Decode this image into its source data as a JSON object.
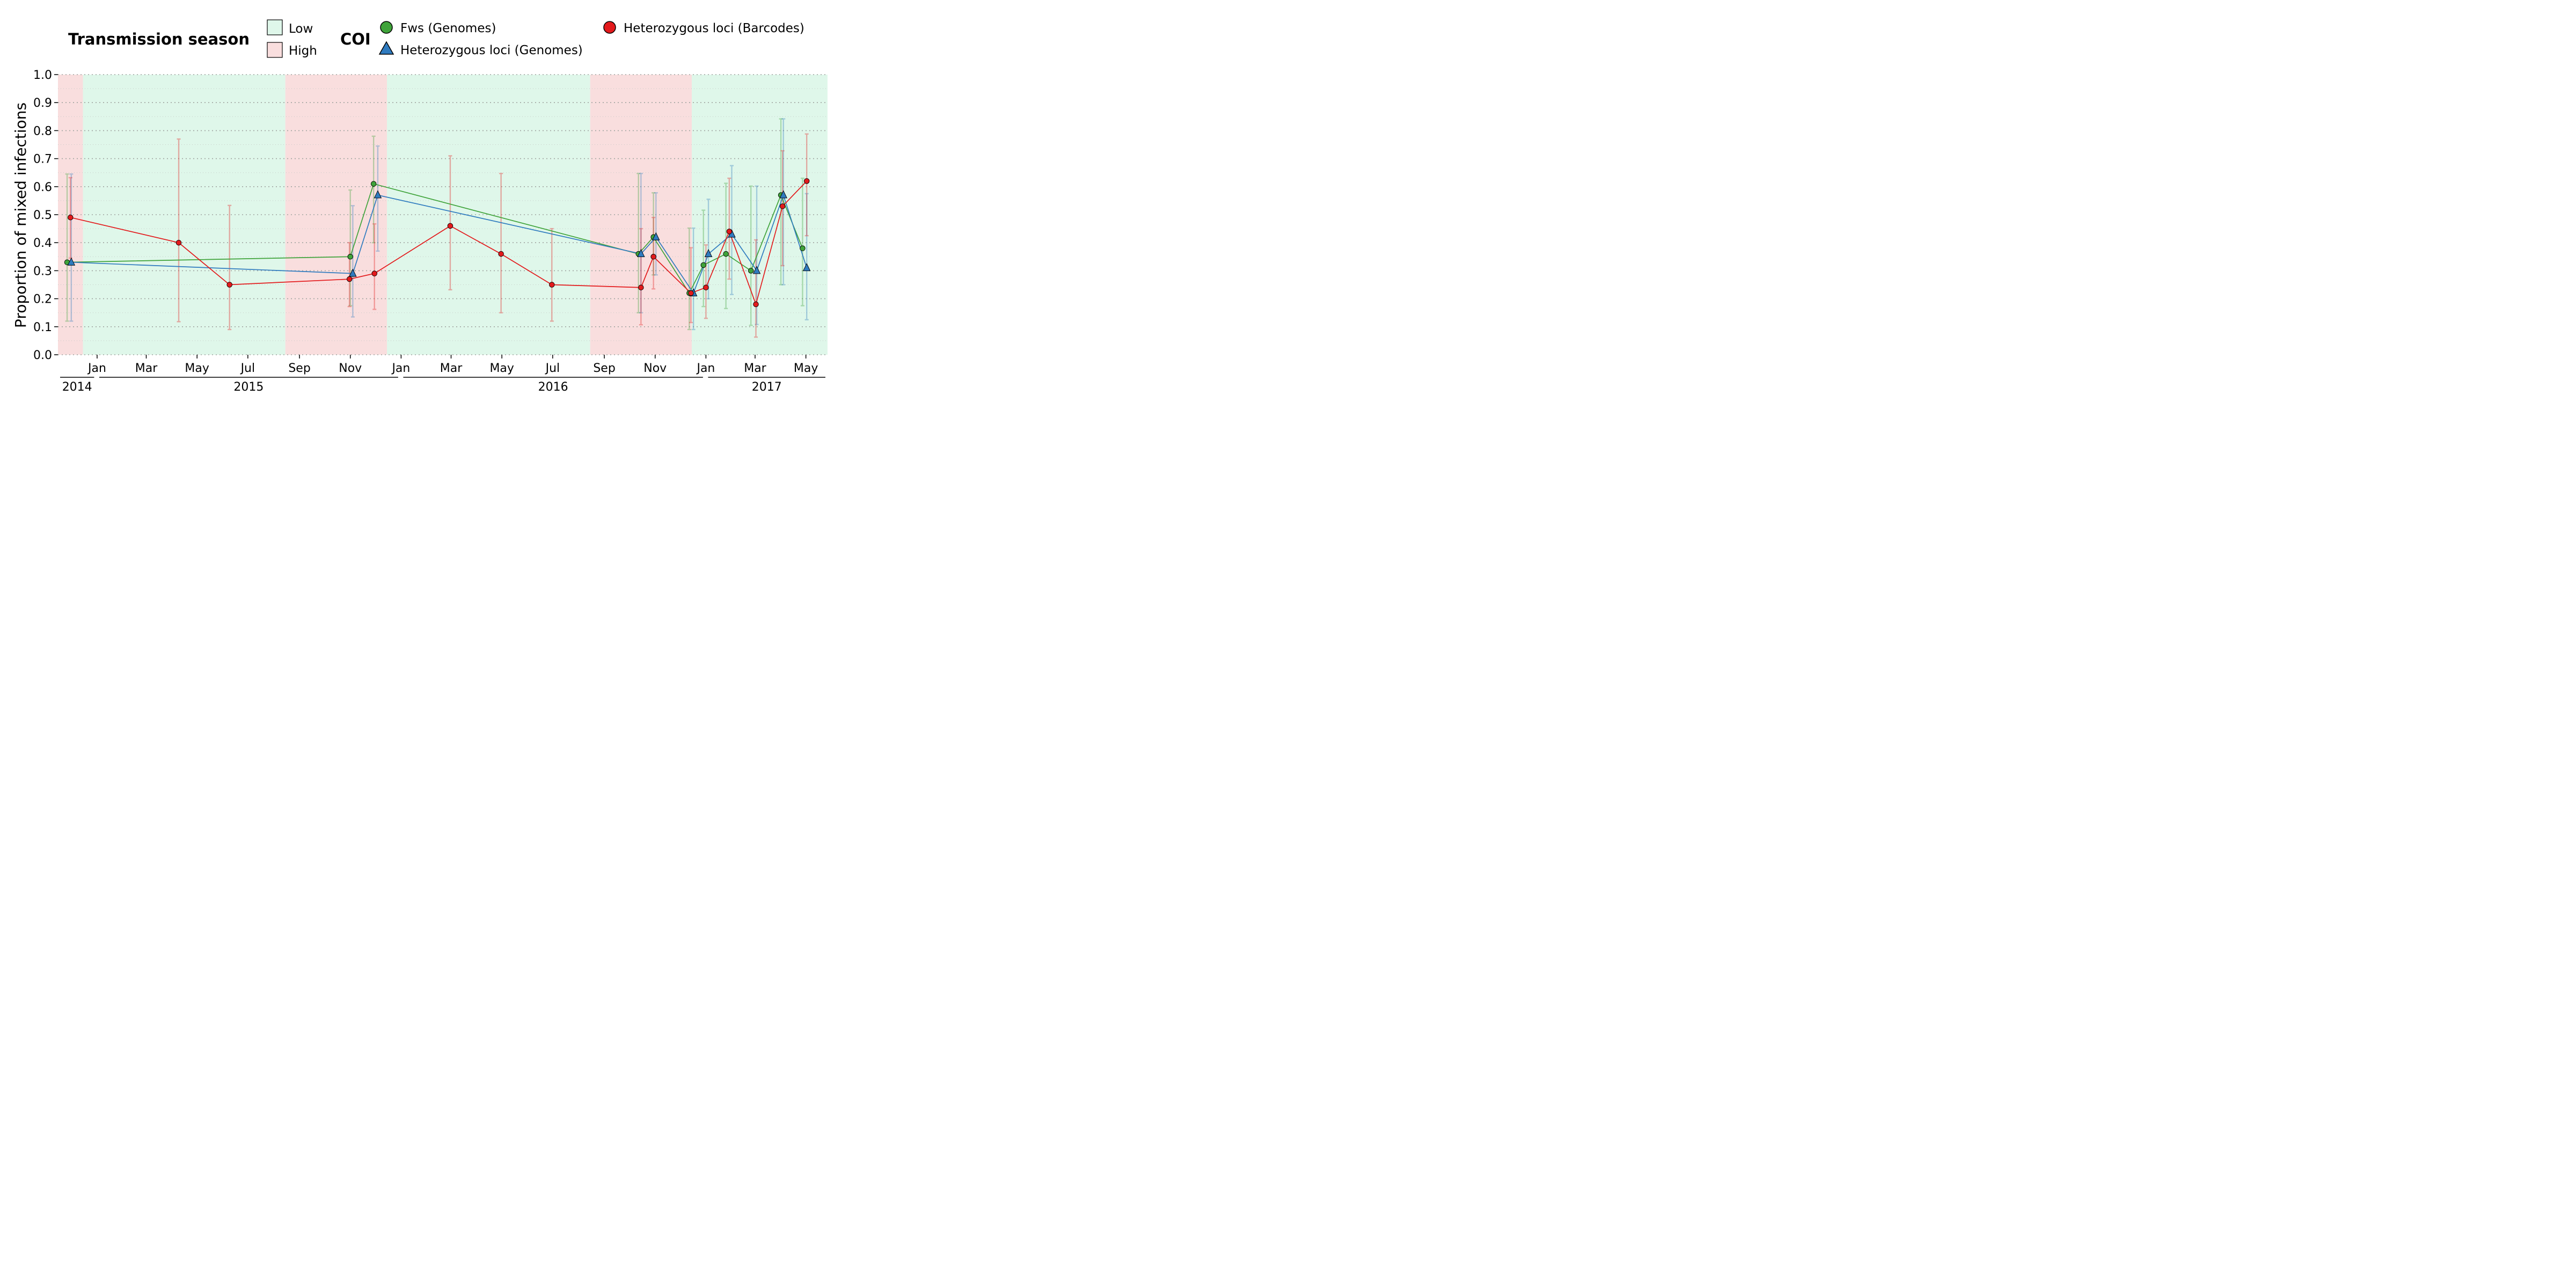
{
  "chart_data": {
    "type": "line",
    "title": "",
    "xlabel": "",
    "ylabel": "Proportion of mixed infections",
    "ylim": [
      0,
      1
    ],
    "xlim": [
      "2014-11-15",
      "2017-05-27"
    ],
    "yticks": [
      "0.0",
      "0.1",
      "0.2",
      "0.3",
      "0.4",
      "0.5",
      "0.6",
      "0.7",
      "0.8",
      "0.9",
      "1.0"
    ],
    "month_ticks": [
      {
        "label": "Jan",
        "date": "2015-01-01"
      },
      {
        "label": "Mar",
        "date": "2015-03-01"
      },
      {
        "label": "May",
        "date": "2015-05-01"
      },
      {
        "label": "Jul",
        "date": "2015-07-01"
      },
      {
        "label": "Sep",
        "date": "2015-09-01"
      },
      {
        "label": "Nov",
        "date": "2015-11-01"
      },
      {
        "label": "Jan",
        "date": "2016-01-01"
      },
      {
        "label": "Mar",
        "date": "2016-03-01"
      },
      {
        "label": "May",
        "date": "2016-05-01"
      },
      {
        "label": "Jul",
        "date": "2016-07-01"
      },
      {
        "label": "Sep",
        "date": "2016-09-01"
      },
      {
        "label": "Nov",
        "date": "2016-11-01"
      },
      {
        "label": "Jan",
        "date": "2017-01-01"
      },
      {
        "label": "Mar",
        "date": "2017-03-01"
      },
      {
        "label": "May",
        "date": "2017-05-01"
      }
    ],
    "year_labels": [
      {
        "label": "2014",
        "start": "2014-11-15",
        "end": "2014-12-31"
      },
      {
        "label": "2015",
        "start": "2015-01-01",
        "end": "2015-12-31"
      },
      {
        "label": "2016",
        "start": "2016-01-01",
        "end": "2016-12-31"
      },
      {
        "label": "2017",
        "start": "2017-01-01",
        "end": "2017-05-27"
      }
    ],
    "seasons": [
      {
        "level": "High",
        "start": "2014-11-15",
        "end": "2014-12-15"
      },
      {
        "level": "Low",
        "start": "2014-12-15",
        "end": "2015-08-15"
      },
      {
        "level": "High",
        "start": "2015-08-15",
        "end": "2015-12-15"
      },
      {
        "level": "Low",
        "start": "2015-12-15",
        "end": "2016-08-15"
      },
      {
        "level": "High",
        "start": "2016-08-15",
        "end": "2016-12-15"
      },
      {
        "level": "Low",
        "start": "2016-12-15",
        "end": "2017-05-27"
      }
    ],
    "legend": {
      "season_title": "Transmission season",
      "season_items": [
        {
          "label": "Low",
          "color": "#dff7ea"
        },
        {
          "label": "High",
          "color": "#f9dede"
        }
      ],
      "coi_title": "COI",
      "position": "top"
    },
    "series": [
      {
        "name": "Fws (Genomes)",
        "color": "#3fa33a",
        "marker": "circle",
        "points": [
          {
            "x": "2014-11-26",
            "y": 0.33,
            "lo": 0.12,
            "hi": 0.645
          },
          {
            "x": "2015-11-01",
            "y": 0.35,
            "lo": 0.175,
            "hi": 0.588
          },
          {
            "x": "2015-11-29",
            "y": 0.61,
            "lo": 0.4,
            "hi": 0.78
          },
          {
            "x": "2016-10-12",
            "y": 0.36,
            "lo": 0.15,
            "hi": 0.647
          },
          {
            "x": "2016-10-30",
            "y": 0.42,
            "lo": 0.285,
            "hi": 0.578
          },
          {
            "x": "2016-12-12",
            "y": 0.22,
            "lo": 0.09,
            "hi": 0.452
          },
          {
            "x": "2016-12-29",
            "y": 0.32,
            "lo": 0.172,
            "hi": 0.516
          },
          {
            "x": "2017-01-25",
            "y": 0.36,
            "lo": 0.165,
            "hi": 0.612
          },
          {
            "x": "2017-02-24",
            "y": 0.3,
            "lo": 0.105,
            "hi": 0.602
          },
          {
            "x": "2017-04-01",
            "y": 0.57,
            "lo": 0.25,
            "hi": 0.842
          },
          {
            "x": "2017-04-27",
            "y": 0.38,
            "lo": 0.175,
            "hi": 0.63
          }
        ]
      },
      {
        "name": "Heterozygous loci (Genomes)",
        "color": "#2f7bbf",
        "marker": "triangle",
        "points": [
          {
            "x": "2014-12-01",
            "y": 0.33,
            "lo": 0.12,
            "hi": 0.645
          },
          {
            "x": "2015-11-04",
            "y": 0.29,
            "lo": 0.135,
            "hi": 0.532
          },
          {
            "x": "2015-12-04",
            "y": 0.57,
            "lo": 0.37,
            "hi": 0.745
          },
          {
            "x": "2016-10-15",
            "y": 0.36,
            "lo": 0.15,
            "hi": 0.647
          },
          {
            "x": "2016-11-02",
            "y": 0.42,
            "lo": 0.285,
            "hi": 0.578
          },
          {
            "x": "2016-12-17",
            "y": 0.22,
            "lo": 0.09,
            "hi": 0.452
          },
          {
            "x": "2017-01-04",
            "y": 0.36,
            "lo": 0.2,
            "hi": 0.555
          },
          {
            "x": "2017-02-01",
            "y": 0.43,
            "lo": 0.215,
            "hi": 0.675
          },
          {
            "x": "2017-03-03",
            "y": 0.3,
            "lo": 0.108,
            "hi": 0.602
          },
          {
            "x": "2017-04-04",
            "y": 0.57,
            "lo": 0.25,
            "hi": 0.842
          },
          {
            "x": "2017-05-02",
            "y": 0.31,
            "lo": 0.125,
            "hi": 0.575
          }
        ]
      },
      {
        "name": "Heterozygous loci (Barcodes)",
        "color": "#e31a1c",
        "marker": "circle",
        "points": [
          {
            "x": "2014-11-30",
            "y": 0.49,
            "lo": 0.345,
            "hi": 0.632
          },
          {
            "x": "2015-04-09",
            "y": 0.4,
            "lo": 0.118,
            "hi": 0.77
          },
          {
            "x": "2015-06-09",
            "y": 0.25,
            "lo": 0.09,
            "hi": 0.533
          },
          {
            "x": "2015-10-31",
            "y": 0.27,
            "lo": 0.172,
            "hi": 0.4
          },
          {
            "x": "2015-11-30",
            "y": 0.29,
            "lo": 0.162,
            "hi": 0.467
          },
          {
            "x": "2016-02-29",
            "y": 0.46,
            "lo": 0.232,
            "hi": 0.71
          },
          {
            "x": "2016-04-30",
            "y": 0.36,
            "lo": 0.15,
            "hi": 0.647
          },
          {
            "x": "2016-06-30",
            "y": 0.25,
            "lo": 0.12,
            "hi": 0.45
          },
          {
            "x": "2016-10-15",
            "y": 0.24,
            "lo": 0.107,
            "hi": 0.45
          },
          {
            "x": "2016-10-30",
            "y": 0.35,
            "lo": 0.235,
            "hi": 0.49
          },
          {
            "x": "2016-12-14",
            "y": 0.22,
            "lo": 0.115,
            "hi": 0.382
          },
          {
            "x": "2017-01-01",
            "y": 0.24,
            "lo": 0.13,
            "hi": 0.392
          },
          {
            "x": "2017-01-29",
            "y": 0.44,
            "lo": 0.27,
            "hi": 0.63
          },
          {
            "x": "2017-03-02",
            "y": 0.18,
            "lo": 0.063,
            "hi": 0.41
          },
          {
            "x": "2017-04-03",
            "y": 0.53,
            "lo": 0.318,
            "hi": 0.728
          },
          {
            "x": "2017-05-02",
            "y": 0.62,
            "lo": 0.425,
            "hi": 0.788
          }
        ]
      }
    ],
    "grid": true
  }
}
